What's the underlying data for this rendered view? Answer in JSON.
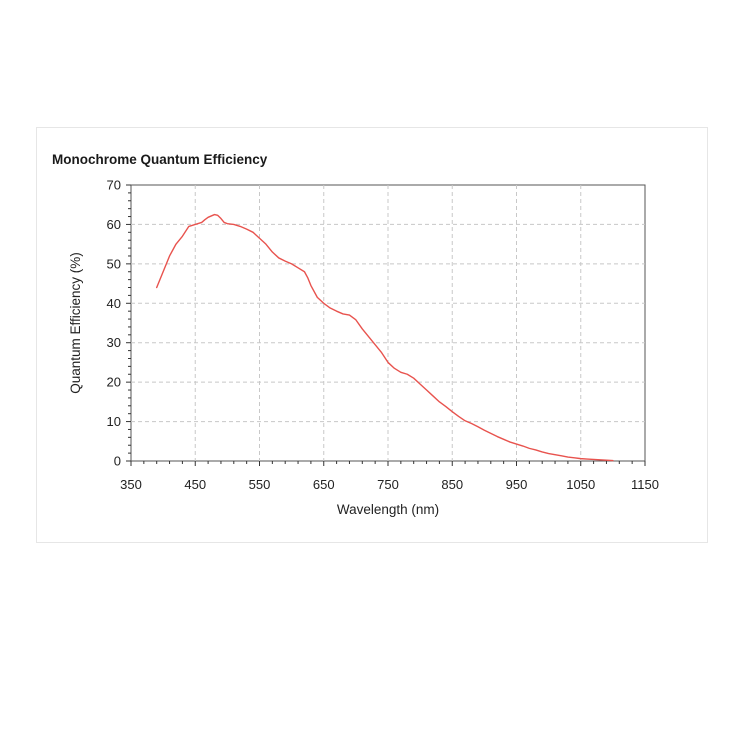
{
  "chart_data": {
    "type": "line",
    "title": "Monochrome Quantum Efficiency",
    "xlabel": "Wavelength (nm)",
    "ylabel": "Quantum Efficiency (%)",
    "xlim": [
      350,
      1150
    ],
    "ylim": [
      0,
      70
    ],
    "xticks": [
      350,
      450,
      550,
      650,
      750,
      850,
      950,
      1050,
      1150
    ],
    "yticks": [
      0,
      10,
      20,
      30,
      40,
      50,
      60,
      70
    ],
    "grid": true,
    "series": [
      {
        "color": "#e8534e",
        "x": [
          390,
          400,
          410,
          420,
          430,
          440,
          450,
          460,
          465,
          470,
          480,
          485,
          490,
          495,
          500,
          510,
          520,
          530,
          540,
          550,
          560,
          570,
          580,
          590,
          600,
          610,
          620,
          625,
          630,
          640,
          650,
          660,
          670,
          680,
          690,
          700,
          710,
          720,
          730,
          740,
          750,
          760,
          770,
          780,
          790,
          800,
          810,
          820,
          830,
          840,
          850,
          860,
          870,
          880,
          890,
          900,
          910,
          920,
          930,
          940,
          950,
          960,
          970,
          980,
          990,
          1000,
          1010,
          1020,
          1030,
          1040,
          1050,
          1060,
          1070,
          1080,
          1090,
          1100
        ],
        "y": [
          44,
          48,
          52,
          55,
          57,
          59.5,
          60,
          60.5,
          61.2,
          61.8,
          62.5,
          62.3,
          61.5,
          60.5,
          60.2,
          60,
          59.5,
          58.8,
          58,
          56.5,
          55,
          53,
          51.5,
          50.7,
          50,
          49,
          48,
          46.5,
          44.5,
          41.5,
          40,
          38.8,
          38,
          37.3,
          37,
          35.8,
          33.5,
          31.5,
          29.5,
          27.5,
          25,
          23.5,
          22.5,
          22,
          21,
          19.5,
          18,
          16.5,
          15,
          13.8,
          12.5,
          11.3,
          10.2,
          9.5,
          8.7,
          7.8,
          7,
          6.2,
          5.5,
          4.8,
          4.3,
          3.8,
          3.2,
          2.8,
          2.3,
          1.9,
          1.6,
          1.3,
          1.0,
          0.8,
          0.6,
          0.5,
          0.4,
          0.3,
          0.2,
          0.1
        ]
      }
    ]
  }
}
